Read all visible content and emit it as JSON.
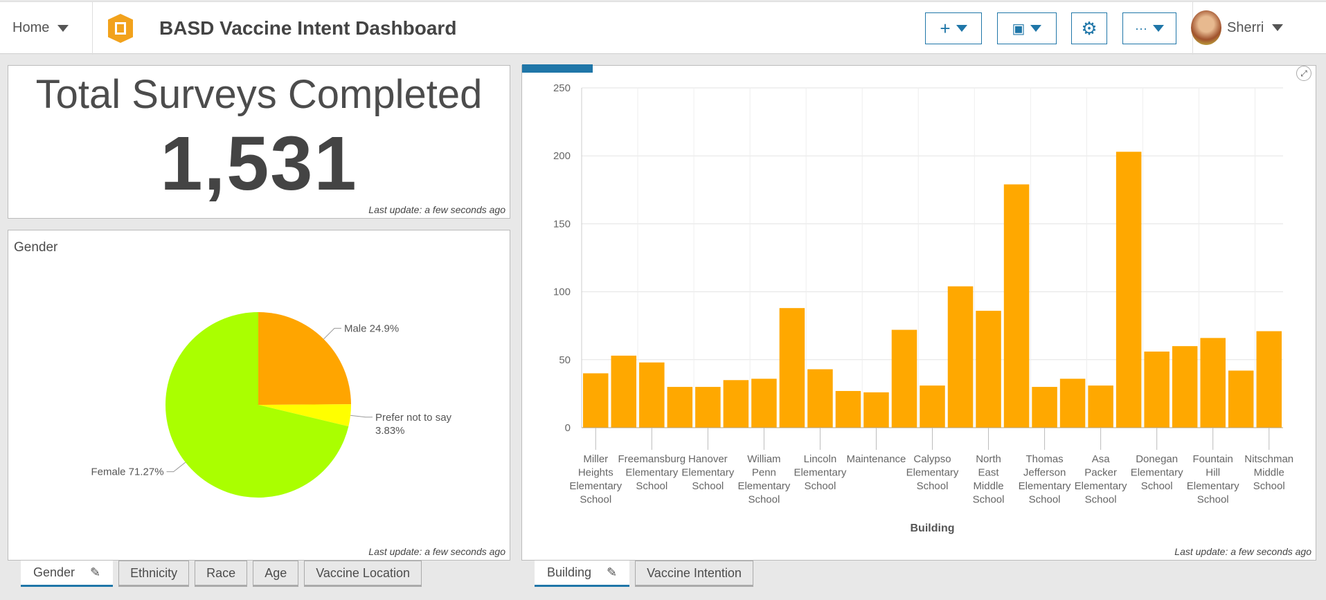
{
  "header": {
    "home_label": "Home",
    "title": "BASD Vaccine Intent Dashboard",
    "add_icon": "plus-icon",
    "save_icon": "save-icon",
    "settings_icon": "gear-icon",
    "more_label": "···",
    "user_name": "Sherri"
  },
  "indicator": {
    "title": "Total Surveys Completed",
    "value": "1,531",
    "last_update": "Last update: a few seconds ago"
  },
  "gender_card": {
    "title": "Gender",
    "last_update": "Last update: a few seconds ago"
  },
  "left_tabs": [
    {
      "label": "Gender",
      "active": true
    },
    {
      "label": "Ethnicity"
    },
    {
      "label": "Race"
    },
    {
      "label": "Age"
    },
    {
      "label": "Vaccine Location"
    }
  ],
  "right_tabs": [
    {
      "label": "Building",
      "active": true
    },
    {
      "label": "Vaccine Intention"
    }
  ],
  "building_card": {
    "last_update": "Last update: a few seconds ago"
  },
  "chart_data": [
    {
      "type": "pie",
      "slices": [
        {
          "label": "Male 24.9%",
          "value": 24.9,
          "color": "#ffa500"
        },
        {
          "label": "Prefer not to say 3.83%",
          "value": 3.83,
          "color": "#ffff00"
        },
        {
          "label": "Female 71.27%",
          "value": 71.27,
          "color": "#aaff00"
        }
      ]
    },
    {
      "type": "bar",
      "xlabel": "Building",
      "ylabel": "",
      "ylim": [
        0,
        250
      ],
      "yticks": [
        0,
        50,
        100,
        150,
        200,
        250
      ],
      "grid": true,
      "color": "#ffa800",
      "categories": [
        "Miller Heights Elementary School",
        "",
        "Freemansburg Elementary School",
        "",
        "Hanover Elementary School",
        "",
        "William Penn Elementary School",
        "",
        "Lincoln Elementary School",
        "",
        "Maintenance",
        "",
        "Calypso Elementary School",
        "",
        "North East Middle School",
        "",
        "Thomas Jefferson Elementary School",
        "",
        "Asa Packer Elementary School",
        "",
        "Donegan Elementary School",
        "",
        "Fountain Hill Elementary School",
        "",
        "Nitschman Middle School"
      ],
      "values": [
        40,
        53,
        48,
        30,
        30,
        35,
        36,
        88,
        43,
        27,
        26,
        72,
        31,
        104,
        86,
        179,
        30,
        36,
        31,
        203,
        56,
        60,
        66,
        42,
        71
      ]
    }
  ]
}
